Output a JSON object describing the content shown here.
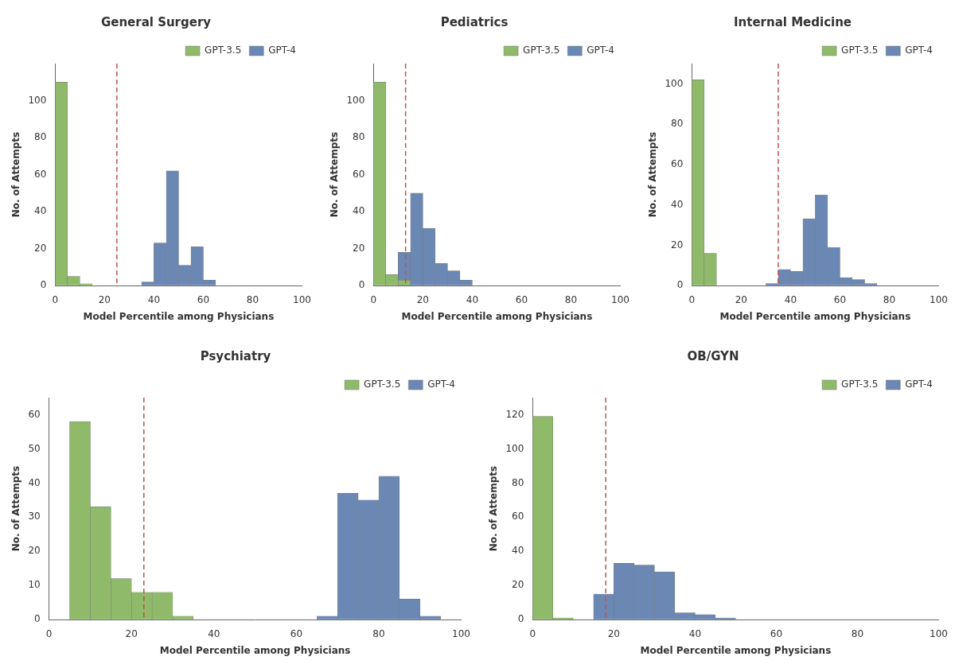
{
  "chart_data": [
    {
      "type": "histogram",
      "title": "General Surgery",
      "x_label": "Model Percentile among Physicians",
      "y_label": "No. of Attempts",
      "xlim": [
        0,
        100
      ],
      "xticks": [
        0,
        20,
        40,
        60,
        80,
        100
      ],
      "ylim": [
        0,
        120
      ],
      "yticks": [
        0,
        20,
        40,
        60,
        80,
        100
      ],
      "grid": false,
      "legend": "upper right",
      "series": [
        {
          "name": "GPT-3.5",
          "color": "#8fba6a",
          "bins": [
            0,
            5,
            10,
            15
          ],
          "values": [
            110,
            5,
            1
          ]
        },
        {
          "name": "GPT-4",
          "color": "#6b88b5",
          "bins": [
            35,
            40,
            45,
            50,
            55,
            60,
            65
          ],
          "values": [
            2,
            23,
            62,
            11,
            21,
            3
          ]
        }
      ],
      "annotations": [
        {
          "type": "vline",
          "x": 25,
          "color": "#c0504d",
          "line_style": "dashed"
        }
      ]
    },
    {
      "type": "histogram",
      "title": "Pediatrics",
      "x_label": "Model Percentile among Physicians",
      "y_label": "No. of Attempts",
      "xlim": [
        0,
        100
      ],
      "xticks": [
        0,
        20,
        40,
        60,
        80,
        100
      ],
      "ylim": [
        0,
        120
      ],
      "yticks": [
        0,
        20,
        40,
        60,
        80,
        100
      ],
      "grid": false,
      "legend": "upper right",
      "series": [
        {
          "name": "GPT-3.5",
          "color": "#8fba6a",
          "bins": [
            0,
            5,
            10,
            15
          ],
          "values": [
            110,
            6,
            3
          ]
        },
        {
          "name": "GPT-4",
          "color": "#6b88b5",
          "bins": [
            10,
            15,
            20,
            25,
            30,
            35,
            40
          ],
          "values": [
            18,
            50,
            31,
            12,
            8,
            3
          ]
        }
      ],
      "annotations": [
        {
          "type": "vline",
          "x": 13,
          "color": "#c0504d",
          "line_style": "dashed"
        }
      ]
    },
    {
      "type": "histogram",
      "title": "Internal Medicine",
      "x_label": "Model Percentile among Physicians",
      "y_label": "No. of Attempts",
      "xlim": [
        0,
        100
      ],
      "xticks": [
        0,
        20,
        40,
        60,
        80,
        100
      ],
      "ylim": [
        0,
        110
      ],
      "yticks": [
        0,
        20,
        40,
        60,
        80,
        100
      ],
      "grid": false,
      "legend": "upper right",
      "series": [
        {
          "name": "GPT-3.5",
          "color": "#8fba6a",
          "bins": [
            0,
            5,
            10
          ],
          "values": [
            102,
            16
          ]
        },
        {
          "name": "GPT-4",
          "color": "#6b88b5",
          "bins": [
            30,
            35,
            40,
            45,
            50,
            55,
            60,
            65,
            70,
            75
          ],
          "values": [
            1,
            8,
            7,
            33,
            45,
            19,
            4,
            3,
            1
          ]
        }
      ],
      "annotations": [
        {
          "type": "vline",
          "x": 35,
          "color": "#c0504d",
          "line_style": "dashed"
        }
      ]
    },
    {
      "type": "histogram",
      "title": "Psychiatry",
      "x_label": "Model Percentile among Physicians",
      "y_label": "No. of Attempts",
      "xlim": [
        0,
        100
      ],
      "xticks": [
        0,
        20,
        40,
        60,
        80,
        100
      ],
      "ylim": [
        0,
        65
      ],
      "yticks": [
        0,
        10,
        20,
        30,
        40,
        50,
        60
      ],
      "grid": false,
      "legend": "upper right",
      "series": [
        {
          "name": "GPT-3.5",
          "color": "#8fba6a",
          "bins": [
            5,
            10,
            15,
            20,
            25,
            30,
            35
          ],
          "values": [
            58,
            33,
            12,
            8,
            8,
            1
          ]
        },
        {
          "name": "GPT-4",
          "color": "#6b88b5",
          "bins": [
            65,
            70,
            75,
            80,
            85,
            90,
            95
          ],
          "values": [
            1,
            37,
            35,
            42,
            6,
            1
          ]
        }
      ],
      "annotations": [
        {
          "type": "vline",
          "x": 23,
          "color": "#c0504d",
          "line_style": "dashed"
        }
      ]
    },
    {
      "type": "histogram",
      "title": "OB/GYN",
      "x_label": "Model Percentile among Physicians",
      "y_label": "No. of Attempts",
      "xlim": [
        0,
        100
      ],
      "xticks": [
        0,
        20,
        40,
        60,
        80,
        100
      ],
      "ylim": [
        0,
        130
      ],
      "yticks": [
        0,
        20,
        40,
        60,
        80,
        100,
        120
      ],
      "grid": false,
      "legend": "upper right",
      "series": [
        {
          "name": "GPT-3.5",
          "color": "#8fba6a",
          "bins": [
            0,
            5,
            10
          ],
          "values": [
            119,
            1
          ]
        },
        {
          "name": "GPT-4",
          "color": "#6b88b5",
          "bins": [
            15,
            20,
            25,
            30,
            35,
            40,
            45,
            50
          ],
          "values": [
            15,
            33,
            32,
            28,
            4,
            3,
            1
          ]
        }
      ],
      "annotations": [
        {
          "type": "vline",
          "x": 18,
          "color": "#c0504d",
          "line_style": "dashed"
        }
      ]
    }
  ]
}
